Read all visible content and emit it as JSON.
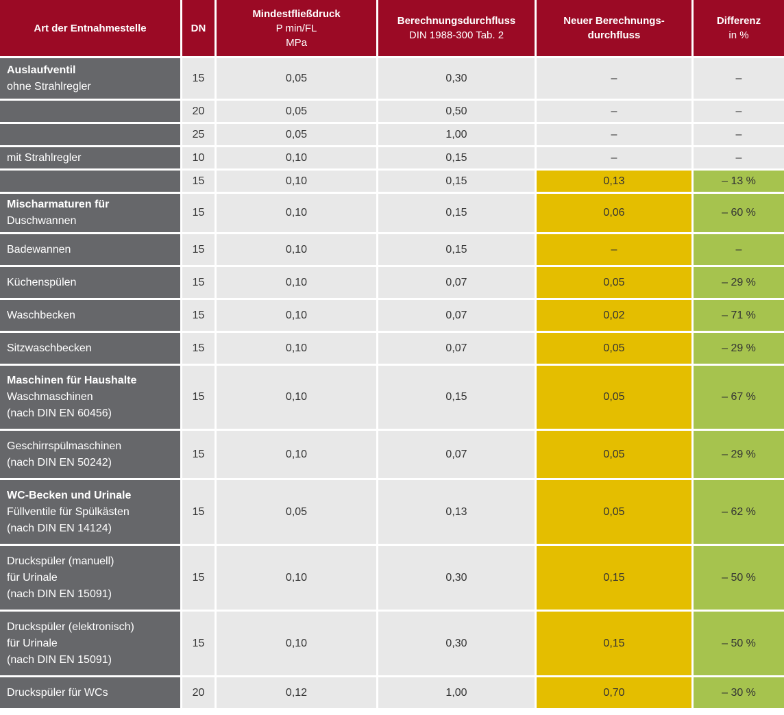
{
  "header": {
    "col1": "Art der Entnahmestelle",
    "col2": "DN",
    "col3": {
      "title": "Mindestfließdruck",
      "line2": "P min/FL",
      "line3": "MPa"
    },
    "col4": {
      "title": "Berechnungsdurchfluss",
      "line2": "DIN 1988-300 Tab. 2"
    },
    "col5": {
      "title": "Neuer Berechnungs-",
      "line2": "durchfluss"
    },
    "col6": {
      "title": "Differenz",
      "line2": "in %"
    }
  },
  "rows": [
    {
      "bold": "Auslaufventil",
      "lines": [
        "ohne Strahlregler"
      ],
      "dn": "15",
      "p": "0,05",
      "q": "0,30",
      "neu": "–",
      "diff": "–",
      "hl": false
    },
    {
      "bold": "",
      "lines": [],
      "dn": "20",
      "p": "0,05",
      "q": "0,50",
      "neu": "–",
      "diff": "–",
      "hl": false
    },
    {
      "bold": "",
      "lines": [],
      "dn": "25",
      "p": "0,05",
      "q": "1,00",
      "neu": "–",
      "diff": "–",
      "hl": false
    },
    {
      "bold": "",
      "lines": [
        "mit Strahlregler"
      ],
      "dn": "10",
      "p": "0,10",
      "q": "0,15",
      "neu": "–",
      "diff": "–",
      "hl": false
    },
    {
      "bold": "",
      "lines": [],
      "dn": "15",
      "p": "0,10",
      "q": "0,15",
      "neu": "0,13",
      "diff": "– 13 %",
      "hl": true
    },
    {
      "bold": "Mischarmaturen für",
      "lines": [
        "Duschwannen"
      ],
      "dn": "15",
      "p": "0,10",
      "q": "0,15",
      "neu": "0,06",
      "diff": "– 60 %",
      "hl": true
    },
    {
      "bold": "",
      "lines": [
        "Badewannen"
      ],
      "dn": "15",
      "p": "0,10",
      "q": "0,15",
      "neu": "–",
      "diff": "–",
      "hl": true
    },
    {
      "bold": "",
      "lines": [
        "Küchenspülen"
      ],
      "dn": "15",
      "p": "0,10",
      "q": "0,07",
      "neu": "0,05",
      "diff": "– 29 %",
      "hl": true
    },
    {
      "bold": "",
      "lines": [
        "Waschbecken"
      ],
      "dn": "15",
      "p": "0,10",
      "q": "0,07",
      "neu": "0,02",
      "diff": "– 71 %",
      "hl": true
    },
    {
      "bold": "",
      "lines": [
        "Sitzwaschbecken"
      ],
      "dn": "15",
      "p": "0,10",
      "q": "0,07",
      "neu": "0,05",
      "diff": "– 29 %",
      "hl": true
    },
    {
      "bold": "Maschinen für Haushalte",
      "lines": [
        "Waschmaschinen",
        "(nach DIN EN 60456)"
      ],
      "dn": "15",
      "p": "0,10",
      "q": "0,15",
      "neu": "0,05",
      "diff": "– 67 %",
      "hl": true
    },
    {
      "bold": "",
      "lines": [
        "Geschirrspülmaschinen",
        "(nach DIN EN 50242)"
      ],
      "dn": "15",
      "p": "0,10",
      "q": "0,07",
      "neu": "0,05",
      "diff": "– 29 %",
      "hl": true
    },
    {
      "bold": "WC-Becken und Urinale",
      "lines": [
        "Füllventile für Spülkästen",
        "(nach DIN EN 14124)"
      ],
      "dn": "15",
      "p": "0,05",
      "q": "0,13",
      "neu": "0,05",
      "diff": "– 62 %",
      "hl": true
    },
    {
      "bold": "",
      "lines": [
        "Druckspüler (manuell)",
        " für Urinale",
        "(nach DIN EN 15091)"
      ],
      "dn": "15",
      "p": "0,10",
      "q": "0,30",
      "neu": "0,15",
      "diff": "– 50 %",
      "hl": true
    },
    {
      "bold": "",
      "lines": [
        "Druckspüler (elektronisch)",
        " für Urinale",
        "(nach DIN EN 15091)"
      ],
      "dn": "15",
      "p": "0,10",
      "q": "0,30",
      "neu": "0,15",
      "diff": "– 50 %",
      "hl": true
    },
    {
      "bold": "",
      "lines": [
        "Druckspüler für WCs"
      ],
      "dn": "20",
      "p": "0,12",
      "q": "1,00",
      "neu": "0,70",
      "diff": "– 30 %",
      "hl": true
    }
  ]
}
